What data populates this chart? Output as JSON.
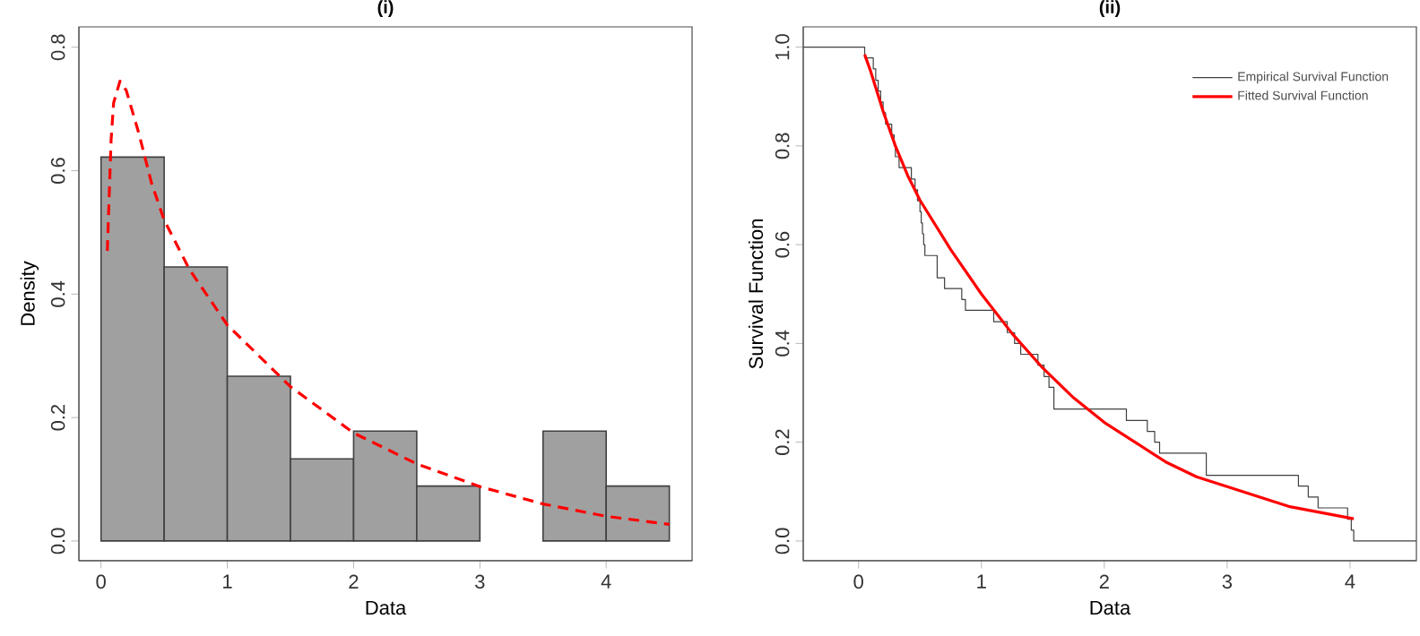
{
  "chart_data": [
    {
      "type": "histogram",
      "title": "(i)",
      "xlabel": "Data",
      "ylabel": "Density",
      "xlim": [
        -0.175,
        4.68
      ],
      "ylim": [
        -0.032,
        0.833
      ],
      "xticks": [
        0,
        1,
        2,
        3,
        4
      ],
      "yticks": [
        {
          "value": 0,
          "label": "0.0"
        },
        {
          "value": 0.2,
          "label": "0.2"
        },
        {
          "value": 0.4,
          "label": "0.4"
        },
        {
          "value": 0.6,
          "label": "0.6"
        },
        {
          "value": 0.8,
          "label": "0.8"
        }
      ],
      "grid": false,
      "legend": false,
      "series": [
        {
          "color": "#a0a0a0",
          "bins": [
            0,
            0.5,
            1,
            1.5,
            2,
            2.5,
            3,
            3.5,
            4,
            4.5
          ],
          "values": [
            0.622,
            0.444,
            0.267,
            0.133,
            0.178,
            0.089,
            0,
            0.178,
            0.089
          ]
        },
        {
          "type": "line",
          "color": "#ff0000",
          "line_style": "dashed",
          "x": [
            0.05,
            0.08,
            0.1,
            0.15,
            0.2,
            0.3,
            0.4,
            0.5,
            0.7,
            1.0,
            1.5,
            2.0,
            2.5,
            3.0,
            3.5,
            4.0,
            4.5
          ],
          "values": [
            0.47,
            0.65,
            0.71,
            0.745,
            0.73,
            0.66,
            0.58,
            0.52,
            0.44,
            0.35,
            0.25,
            0.175,
            0.125,
            0.088,
            0.06,
            0.04,
            0.027
          ]
        }
      ]
    },
    {
      "type": "line",
      "title": "(ii)",
      "xlabel": "Data",
      "ylabel": "Survival Function",
      "xlim": [
        -0.45,
        4.54
      ],
      "ylim": [
        -0.04,
        1.041
      ],
      "xticks": [
        0,
        1,
        2,
        3,
        4
      ],
      "yticks": [
        {
          "value": 0,
          "label": "0.0"
        },
        {
          "value": 0.2,
          "label": "0.2"
        },
        {
          "value": 0.4,
          "label": "0.4"
        },
        {
          "value": 0.6,
          "label": "0.6"
        },
        {
          "value": 0.8,
          "label": "0.8"
        },
        {
          "value": 1,
          "label": "1.0"
        }
      ],
      "grid": false,
      "legend": "top right",
      "series": [
        {
          "name": "Empirical Survival Function",
          "type": "step",
          "color": "#404040",
          "x": [
            -0.45,
            0.05,
            0.12,
            0.14,
            0.16,
            0.18,
            0.2,
            0.22,
            0.27,
            0.29,
            0.3,
            0.33,
            0.43,
            0.46,
            0.48,
            0.5,
            0.51,
            0.52,
            0.53,
            0.54,
            0.64,
            0.7,
            0.84,
            0.87,
            1.1,
            1.21,
            1.27,
            1.32,
            1.46,
            1.51,
            1.55,
            1.59,
            2.18,
            2.35,
            2.41,
            2.45,
            2.83,
            3.58,
            3.66,
            3.74,
            3.98,
            4.01,
            4.03,
            4.54
          ],
          "values": [
            1.0,
            0.978,
            0.956,
            0.933,
            0.911,
            0.889,
            0.867,
            0.844,
            0.822,
            0.8,
            0.778,
            0.756,
            0.733,
            0.711,
            0.689,
            0.667,
            0.644,
            0.622,
            0.6,
            0.578,
            0.533,
            0.511,
            0.489,
            0.467,
            0.444,
            0.422,
            0.4,
            0.378,
            0.356,
            0.333,
            0.311,
            0.267,
            0.244,
            0.222,
            0.2,
            0.178,
            0.133,
            0.111,
            0.089,
            0.067,
            0.044,
            0.022,
            0,
            0
          ]
        },
        {
          "name": "Fitted Survival Function",
          "color": "#ff0000",
          "x": [
            0.05,
            0.1,
            0.2,
            0.3,
            0.4,
            0.5,
            0.75,
            1.0,
            1.25,
            1.5,
            1.75,
            2.0,
            2.25,
            2.5,
            2.75,
            3.0,
            3.5,
            4.03
          ],
          "values": [
            0.985,
            0.95,
            0.87,
            0.8,
            0.74,
            0.69,
            0.59,
            0.5,
            0.42,
            0.35,
            0.29,
            0.24,
            0.2,
            0.16,
            0.13,
            0.11,
            0.07,
            0.045
          ]
        }
      ]
    }
  ]
}
